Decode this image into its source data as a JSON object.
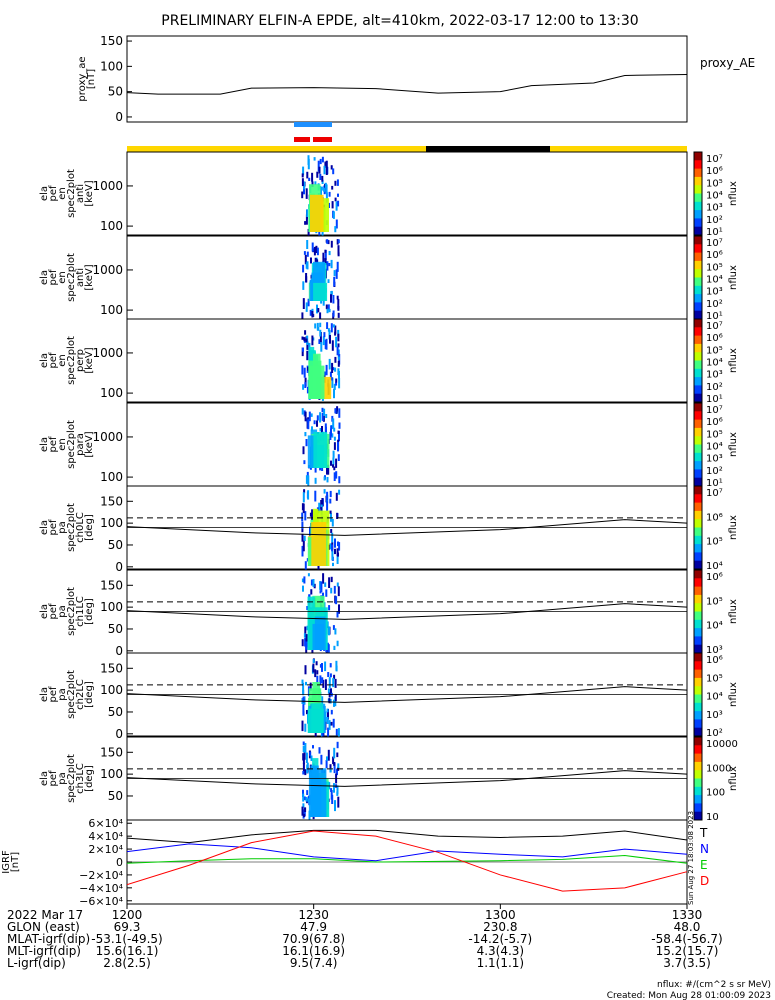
{
  "title": "PRELIMINARY ELFIN-A EPDE, alt=410km, 2022-03-17 12:00 to 13:30",
  "panels": {
    "ae": {
      "ylabel": [
        "proxy_ae",
        "[nT]"
      ],
      "ticks": [
        "150",
        "100",
        "50",
        "0"
      ],
      "legend": "proxy_AE"
    },
    "en": [
      {
        "ylabel": [
          "ela",
          "pef",
          "en",
          "spec2plot",
          "anti",
          "[keV]"
        ],
        "ticks": [
          "1000",
          "100"
        ],
        "cbar_label": "nflux"
      },
      {
        "ylabel": [
          "ela",
          "pef",
          "en",
          "spec2plot",
          "anti",
          "[keV]"
        ],
        "ticks": [
          "1000",
          "100"
        ],
        "cbar_label": "nflux"
      },
      {
        "ylabel": [
          "ela",
          "pef",
          "en",
          "spec2plot",
          "perp",
          "[keV]"
        ],
        "ticks": [
          "1000",
          "100"
        ],
        "cbar_label": "nflux"
      },
      {
        "ylabel": [
          "ela",
          "pef",
          "en",
          "spec2plot",
          "para",
          "[keV]"
        ],
        "ticks": [
          "1000",
          "100"
        ],
        "cbar_label": "nflux"
      }
    ],
    "pa": [
      {
        "ylabel": [
          "ela",
          "pef",
          "pa",
          "spec2plot",
          "ch0LC",
          "[deg]"
        ],
        "ticks": [
          "150",
          "100",
          "50",
          "0"
        ],
        "cbar_label": "nflux"
      },
      {
        "ylabel": [
          "ela",
          "pef",
          "pa",
          "spec2plot",
          "ch1LC",
          "[deg]"
        ],
        "ticks": [
          "150",
          "100",
          "50",
          "0"
        ],
        "cbar_label": "nflux"
      },
      {
        "ylabel": [
          "ela",
          "pef",
          "pa",
          "spec2plot",
          "ch2LC",
          "[deg]"
        ],
        "ticks": [
          "150",
          "100",
          "50",
          "0"
        ],
        "cbar_label": "nflux"
      },
      {
        "ylabel": [
          "ela",
          "pef",
          "pa",
          "spec2plot",
          "ch3LC",
          "[deg]"
        ],
        "ticks": [
          "150",
          "100",
          "50"
        ],
        "cbar_label": "nflux"
      }
    ],
    "igrf": {
      "ylabel": [
        "IGRF",
        "[nT]"
      ],
      "ticks": [
        "6×10⁴",
        "4×10⁴",
        "2×10⁴",
        "0",
        "−2×10⁴",
        "−4×10⁴",
        "−6×10⁴"
      ],
      "legend": [
        "T",
        "N",
        "E",
        "D"
      ]
    },
    "side_note": "Sun Aug 27 18:03:08 2023"
  },
  "cbar_ticks": {
    "en": [
      "10⁷",
      "10⁶",
      "10⁵",
      "10⁴",
      "10³",
      "10²",
      "10¹"
    ],
    "pa0": [
      "10⁷",
      "10⁶",
      "10⁵",
      "10⁴"
    ],
    "pa1": [
      "10⁶",
      "10⁵",
      "10⁴",
      "10³"
    ],
    "pa2": [
      "10⁶",
      "10⁵",
      "10⁴",
      "10³",
      "10²"
    ],
    "pa3": [
      "10000",
      "1000",
      "100",
      "10"
    ]
  },
  "colors": {
    "T": "#000000",
    "N": "#0000ff",
    "E": "#00cc00",
    "D": "#ff0000",
    "bar_yellow": "#ffd700",
    "bar_black": "#000000",
    "blue_bar": "#1e90ff",
    "red_bar": "#ee0000"
  },
  "footer": {
    "rows": [
      {
        "label": "2022 Mar 17",
        "vals": [
          "1200",
          "1230",
          "1300",
          "1330"
        ]
      },
      {
        "label": "GLON (east)",
        "vals": [
          "69.3",
          "47.9",
          "230.8",
          "48.0"
        ]
      },
      {
        "label": "MLAT-igrf(dip)",
        "vals": [
          "-53.1(-49.5)",
          "70.9(67.8)",
          "-14.2(-5.7)",
          "-58.4(-56.7)"
        ]
      },
      {
        "label": "MLT-igrf(dip)",
        "vals": [
          "15.6(16.1)",
          "16.1(16.9)",
          "4.3(4.3)",
          "15.2(15.7)"
        ]
      },
      {
        "label": "L-igrf(dip)",
        "vals": [
          "2.8(2.5)",
          "9.5(7.4)",
          "1.1(1.1)",
          "3.7(3.5)"
        ]
      }
    ],
    "units_note": "nflux: #/(cm^2 s sr MeV)",
    "created": "Created: Mon Aug 28 01:00:09 2023"
  },
  "chart_data": {
    "type": "line",
    "x_range": [
      "12:00",
      "13:30"
    ],
    "series": [
      {
        "name": "proxy_AE",
        "x": [
          "12:00",
          "12:05",
          "12:15",
          "12:20",
          "12:30",
          "12:40",
          "12:50",
          "13:00",
          "13:05",
          "13:15",
          "13:20",
          "13:30"
        ],
        "values": [
          48,
          45,
          45,
          57,
          58,
          56,
          47,
          50,
          62,
          67,
          82,
          84
        ]
      },
      {
        "name": "T",
        "x": [
          "12:00",
          "12:10",
          "12:20",
          "12:30",
          "12:40",
          "12:50",
          "13:00",
          "13:10",
          "13:20",
          "13:30"
        ],
        "values": [
          37000,
          30000,
          42000,
          49000,
          49000,
          40000,
          38000,
          40000,
          48000,
          34000
        ]
      },
      {
        "name": "N",
        "x": [
          "12:00",
          "12:10",
          "12:20",
          "12:30",
          "12:40",
          "12:50",
          "13:00",
          "13:10",
          "13:20",
          "13:30"
        ],
        "values": [
          16000,
          28000,
          22000,
          8000,
          2000,
          17000,
          12000,
          8000,
          20000,
          12000
        ]
      },
      {
        "name": "E",
        "x": [
          "12:00",
          "12:10",
          "12:20",
          "12:30",
          "12:40",
          "12:50",
          "13:00",
          "13:10",
          "13:20",
          "13:30"
        ],
        "values": [
          -2000,
          2000,
          5000,
          5000,
          0,
          1000,
          2000,
          4000,
          10000,
          -2000
        ]
      },
      {
        "name": "D",
        "x": [
          "12:00",
          "12:10",
          "12:20",
          "12:30",
          "12:40",
          "12:50",
          "13:00",
          "13:10",
          "13:20",
          "13:30"
        ],
        "values": [
          -35000,
          -5000,
          30000,
          48000,
          40000,
          15000,
          -20000,
          -45000,
          -40000,
          -15000
        ]
      }
    ]
  }
}
